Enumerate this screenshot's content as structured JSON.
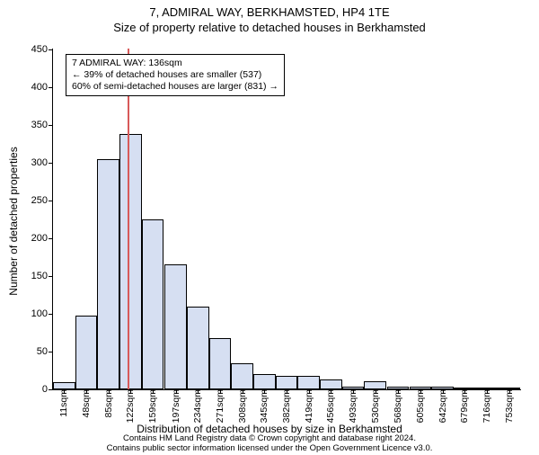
{
  "titles": {
    "line1": "7, ADMIRAL WAY, BERKHAMSTED, HP4 1TE",
    "line2": "Size of property relative to detached houses in Berkhamsted"
  },
  "axes": {
    "ylabel": "Number of detached properties",
    "xlabel": "Distribution of detached houses by size in Berkhamsted"
  },
  "footer": {
    "line1": "Contains HM Land Registry data © Crown copyright and database right 2024.",
    "line2": "Contains public sector information licensed under the Open Government Licence v3.0."
  },
  "info_box": {
    "line1": "7 ADMIRAL WAY: 136sqm",
    "line2": "← 39% of detached houses are smaller (537)",
    "line3": "60% of semi-detached houses are larger (831) →"
  },
  "chart": {
    "type": "histogram",
    "bar_fill": "#d6dff2",
    "bar_stroke": "#000000",
    "background": "#ffffff",
    "marker_color": "#d85a5a",
    "marker_x_value": 136,
    "ylim": [
      0,
      450
    ],
    "ytick_step": 50,
    "x_tick_labels": [
      "11sqm",
      "48sqm",
      "85sqm",
      "122sqm",
      "159sqm",
      "197sqm",
      "234sqm",
      "271sqm",
      "308sqm",
      "345sqm",
      "382sqm",
      "419sqm",
      "456sqm",
      "493sqm",
      "530sqm",
      "568sqm",
      "605sqm",
      "642sqm",
      "679sqm",
      "716sqm",
      "753sqm"
    ],
    "x_tick_positions": [
      11,
      48,
      85,
      122,
      159,
      197,
      234,
      271,
      308,
      345,
      382,
      419,
      456,
      493,
      530,
      568,
      605,
      642,
      679,
      716,
      753
    ],
    "x_range": [
      11,
      790
    ],
    "bar_width_value": 37,
    "values": [
      10,
      98,
      305,
      338,
      225,
      165,
      110,
      68,
      35,
      20,
      18,
      18,
      13,
      3,
      11,
      3,
      4,
      3,
      2,
      2,
      2
    ]
  },
  "fonts": {
    "title_fontsize": 13,
    "label_fontsize": 12,
    "tick_fontsize": 11,
    "info_fontsize": 10.5,
    "footer_fontsize": 9.5
  }
}
